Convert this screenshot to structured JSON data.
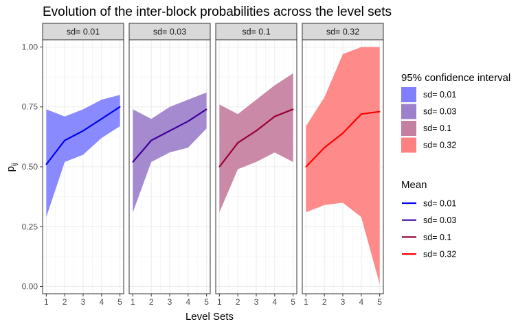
{
  "chart_data": {
    "type": "line",
    "title": "Evolution of the inter-block probabilities across the level sets",
    "xlabel": "Level Sets",
    "ylabel": "p",
    "ylabel_sub": "ij",
    "x": [
      1,
      2,
      3,
      4,
      5
    ],
    "x_ticks": [
      "1",
      "2",
      "3",
      "4",
      "5"
    ],
    "y_ticks": [
      "0.00",
      "0.25",
      "0.50",
      "0.75",
      "1.00"
    ],
    "ylim": [
      -0.03,
      1.03
    ],
    "grid": true,
    "legend_placement": "right",
    "panels": [
      {
        "label": "sd= 0.01",
        "mean": [
          0.51,
          0.61,
          0.65,
          0.7,
          0.75
        ],
        "ci_lower": [
          0.29,
          0.52,
          0.55,
          0.62,
          0.67
        ],
        "ci_upper": [
          0.74,
          0.71,
          0.74,
          0.78,
          0.8
        ],
        "fill_color": "#8080ff",
        "line_color": "#0000ee"
      },
      {
        "label": "sd= 0.03",
        "mean": [
          0.52,
          0.61,
          0.65,
          0.69,
          0.74
        ],
        "ci_lower": [
          0.31,
          0.52,
          0.56,
          0.58,
          0.66
        ],
        "ci_upper": [
          0.74,
          0.7,
          0.75,
          0.78,
          0.81
        ],
        "fill_color": "#9d80cc",
        "line_color": "#3f0099"
      },
      {
        "label": "sd= 0.1",
        "mean": [
          0.5,
          0.6,
          0.65,
          0.71,
          0.74
        ],
        "ci_lower": [
          0.31,
          0.49,
          0.52,
          0.56,
          0.52
        ],
        "ci_upper": [
          0.76,
          0.72,
          0.78,
          0.84,
          0.89
        ],
        "fill_color": "#c57fa0",
        "line_color": "#990033"
      },
      {
        "label": "sd= 0.32",
        "mean": [
          0.5,
          0.58,
          0.64,
          0.72,
          0.73
        ],
        "ci_lower": [
          0.31,
          0.34,
          0.35,
          0.29,
          0.01
        ],
        "ci_upper": [
          0.67,
          0.79,
          0.97,
          1.0,
          1.0
        ],
        "fill_color": "#ff8080",
        "line_color": "#ff0000"
      }
    ],
    "legend_ci": {
      "title": "95% confidence interval",
      "items": [
        "sd= 0.01",
        "sd= 0.03",
        "sd= 0.1",
        "sd= 0.32"
      ],
      "colors": [
        "#8080ff",
        "#9d80cc",
        "#c57fa0",
        "#ff8080"
      ]
    },
    "legend_mean": {
      "title": "Mean",
      "items": [
        "sd= 0.01",
        "sd= 0.03",
        "sd= 0.1",
        "sd= 0.32"
      ],
      "colors": [
        "#0000ee",
        "#3f0099",
        "#990033",
        "#ff0000"
      ]
    }
  }
}
